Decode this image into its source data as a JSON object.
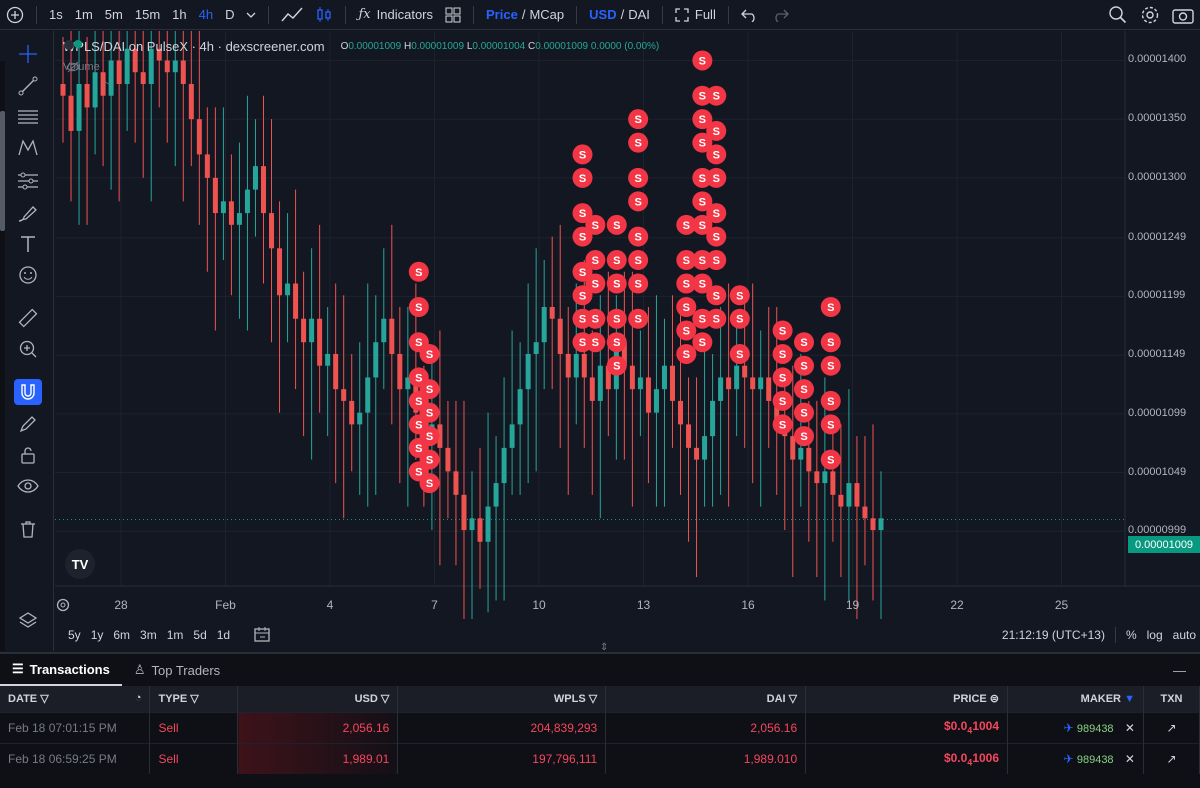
{
  "toolbar": {
    "intervals": [
      "1s",
      "1m",
      "5m",
      "15m",
      "1h",
      "4h",
      "D"
    ],
    "active_interval": "4h",
    "indicators_label": "Indicators",
    "price_label": "Price",
    "mcap_label": "MCap",
    "usd_label": "USD",
    "dai_label": "DAI",
    "full_label": "Full",
    "slash": "/"
  },
  "chart": {
    "symbol": "WPLS/DAI on PulseX · 4h · dexscreener.com",
    "ohlc": {
      "o_label": "O",
      "o": "0.00001009",
      "h_label": "H",
      "h": "0.00001009",
      "l_label": "L",
      "l": "0.00001004",
      "c_label": "C",
      "c": "0.00001009",
      "change": "0.0000 (0.00%)"
    },
    "volume_label": "Volume",
    "last_price": "0.00001009",
    "logo": "TV",
    "marker_label": "S"
  },
  "chart_data": {
    "type": "candlestick",
    "title": "WPLS/DAI on PulseX · 4h",
    "y_ticks": [
      "0.00001400",
      "0.00001350",
      "0.00001300",
      "0.00001249",
      "0.00001199",
      "0.00001149",
      "0.00001099",
      "0.00001049",
      "0.00000999"
    ],
    "x_ticks": [
      "28",
      "Feb",
      "4",
      "7",
      "10",
      "13",
      "16",
      "19",
      "22",
      "25"
    ],
    "ylim": [
      9.6e-06,
      1.42e-05
    ],
    "last_close": 1.009e-05,
    "closes": [
      1.37e-05,
      1.34e-05,
      1.38e-05,
      1.36e-05,
      1.39e-05,
      1.37e-05,
      1.4e-05,
      1.38e-05,
      1.41e-05,
      1.39e-05,
      1.38e-05,
      1.41e-05,
      1.4e-05,
      1.39e-05,
      1.4e-05,
      1.38e-05,
      1.35e-05,
      1.32e-05,
      1.3e-05,
      1.27e-05,
      1.28e-05,
      1.26e-05,
      1.27e-05,
      1.29e-05,
      1.31e-05,
      1.27e-05,
      1.24e-05,
      1.2e-05,
      1.21e-05,
      1.18e-05,
      1.16e-05,
      1.18e-05,
      1.14e-05,
      1.15e-05,
      1.12e-05,
      1.11e-05,
      1.09e-05,
      1.1e-05,
      1.13e-05,
      1.16e-05,
      1.18e-05,
      1.15e-05,
      1.12e-05,
      1.13e-05,
      1.1e-05,
      1.08e-05,
      1.09e-05,
      1.07e-05,
      1.05e-05,
      1.03e-05,
      1e-05,
      1.01e-05,
      9.9e-06,
      1.02e-05,
      1.04e-05,
      1.07e-05,
      1.09e-05,
      1.12e-05,
      1.15e-05,
      1.16e-05,
      1.19e-05,
      1.18e-05,
      1.15e-05,
      1.13e-05,
      1.15e-05,
      1.13e-05,
      1.11e-05,
      1.14e-05,
      1.12e-05,
      1.16e-05,
      1.14e-05,
      1.12e-05,
      1.13e-05,
      1.1e-05,
      1.12e-05,
      1.14e-05,
      1.11e-05,
      1.09e-05,
      1.07e-05,
      1.06e-05,
      1.08e-05,
      1.11e-05,
      1.13e-05,
      1.12e-05,
      1.14e-05,
      1.13e-05,
      1.12e-05,
      1.13e-05,
      1.11e-05,
      1.09e-05,
      1.08e-05,
      1.06e-05,
      1.07e-05,
      1.05e-05,
      1.04e-05,
      1.05e-05,
      1.03e-05,
      1.02e-05,
      1.04e-05,
      1.02e-05,
      1.01e-05,
      1e-05,
      1.01e-05
    ],
    "sell_markers": [
      {
        "x": 0.34,
        "ys": [
          1.22e-05,
          1.19e-05,
          1.16e-05,
          1.13e-05,
          1.11e-05,
          1.09e-05,
          1.07e-05,
          1.05e-05
        ]
      },
      {
        "x": 0.35,
        "ys": [
          1.15e-05,
          1.12e-05,
          1.1e-05,
          1.08e-05,
          1.06e-05,
          1.04e-05
        ]
      },
      {
        "x": 0.493,
        "ys": [
          1.32e-05,
          1.3e-05,
          1.27e-05,
          1.25e-05,
          1.22e-05,
          1.2e-05,
          1.18e-05,
          1.16e-05
        ]
      },
      {
        "x": 0.505,
        "ys": [
          1.26e-05,
          1.23e-05,
          1.21e-05,
          1.18e-05,
          1.16e-05
        ]
      },
      {
        "x": 0.525,
        "ys": [
          1.26e-05,
          1.23e-05,
          1.21e-05,
          1.18e-05,
          1.16e-05,
          1.14e-05
        ]
      },
      {
        "x": 0.545,
        "ys": [
          1.35e-05,
          1.33e-05,
          1.3e-05,
          1.28e-05,
          1.25e-05,
          1.23e-05,
          1.21e-05,
          1.18e-05
        ]
      },
      {
        "x": 0.59,
        "ys": [
          1.26e-05,
          1.23e-05,
          1.21e-05,
          1.19e-05,
          1.17e-05,
          1.15e-05
        ]
      },
      {
        "x": 0.605,
        "ys": [
          1.4e-05,
          1.37e-05,
          1.35e-05,
          1.33e-05,
          1.3e-05,
          1.28e-05,
          1.26e-05,
          1.23e-05,
          1.21e-05,
          1.18e-05,
          1.16e-05
        ]
      },
      {
        "x": 0.618,
        "ys": [
          1.37e-05,
          1.34e-05,
          1.32e-05,
          1.3e-05,
          1.27e-05,
          1.25e-05,
          1.23e-05,
          1.2e-05,
          1.18e-05
        ]
      },
      {
        "x": 0.64,
        "ys": [
          1.2e-05,
          1.18e-05,
          1.15e-05
        ]
      },
      {
        "x": 0.68,
        "ys": [
          1.17e-05,
          1.15e-05,
          1.13e-05,
          1.11e-05,
          1.09e-05
        ]
      },
      {
        "x": 0.7,
        "ys": [
          1.16e-05,
          1.14e-05,
          1.12e-05,
          1.1e-05,
          1.08e-05
        ]
      },
      {
        "x": 0.725,
        "ys": [
          1.19e-05,
          1.16e-05,
          1.14e-05,
          1.11e-05,
          1.09e-05,
          1.06e-05
        ]
      }
    ]
  },
  "timebar": {
    "ranges": [
      "5y",
      "1y",
      "6m",
      "3m",
      "1m",
      "5d",
      "1d"
    ],
    "clock": "21:12:19 (UTC+13)",
    "percent": "%",
    "log": "log",
    "auto": "auto"
  },
  "panel": {
    "tabs": [
      "Transactions",
      "Top Traders"
    ],
    "columns": [
      "DATE",
      "TYPE",
      "USD",
      "WPLS",
      "DAI",
      "PRICE",
      "MAKER",
      "TXN"
    ],
    "rows": [
      {
        "date": "Feb 18 07:01:15 PM",
        "type": "Sell",
        "usd": "2,056.16",
        "wpls": "204,839,293",
        "dai": "2,056.16",
        "price_prefix": "$0.0",
        "price_sub": "4",
        "price_tail": "1004",
        "maker": "989438"
      },
      {
        "date": "Feb 18 06:59:25 PM",
        "type": "Sell",
        "usd": "1,989.01",
        "wpls": "197,796,111",
        "dai": "1,989.010",
        "price_prefix": "$0.0",
        "price_sub": "4",
        "price_tail": "1006",
        "maker": "989438"
      }
    ]
  },
  "colors": {
    "up": "#26a69a",
    "down": "#ef5350",
    "marker": "#f23645",
    "accent": "#2962ff"
  }
}
